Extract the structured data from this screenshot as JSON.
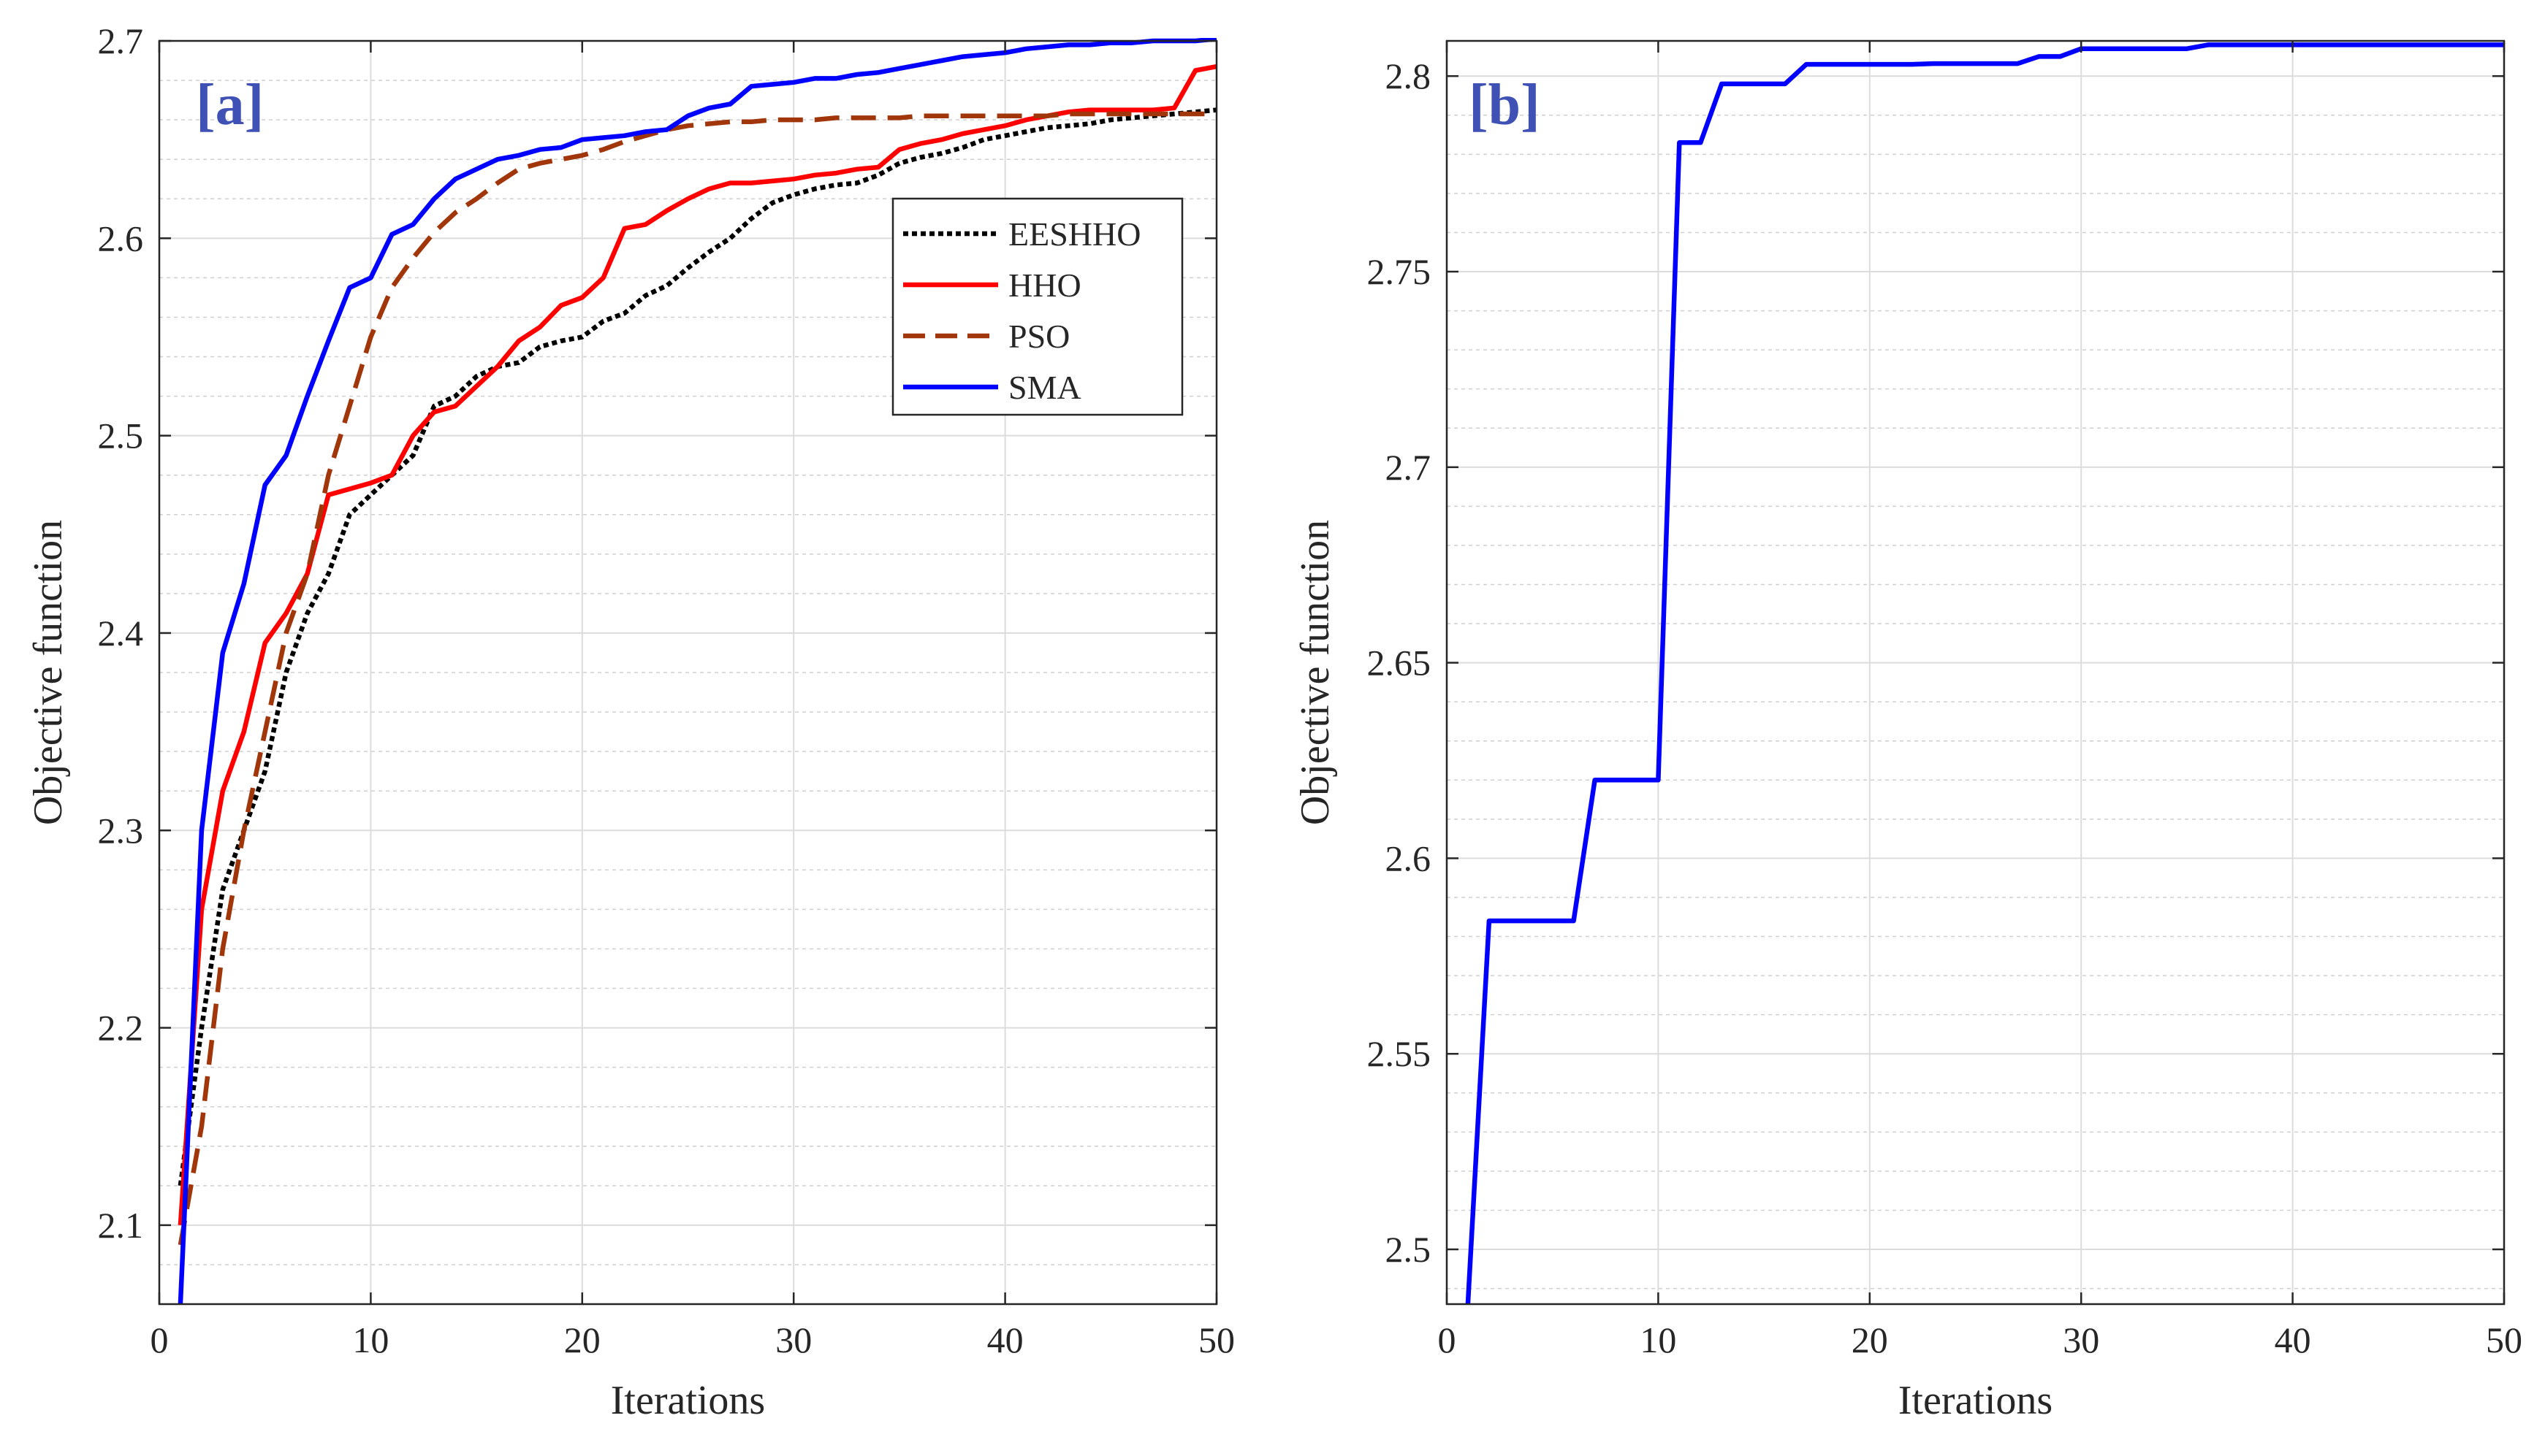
{
  "chart_data": [
    {
      "id": "a",
      "type": "line",
      "panel_label": "[a]",
      "xlabel": "Iterations",
      "ylabel": "Objective function",
      "xlim": [
        0,
        50
      ],
      "ylim": [
        2.06,
        2.7
      ],
      "xticks": [
        0,
        10,
        20,
        30,
        40,
        50
      ],
      "xtick_labels": [
        "0",
        "10",
        "20",
        "30",
        "40",
        "50"
      ],
      "yticks": [
        2.1,
        2.2,
        2.3,
        2.4,
        2.5,
        2.6,
        2.7
      ],
      "ytick_labels": [
        "2.1",
        "2.2",
        "2.3",
        "2.4",
        "2.5",
        "2.6",
        "2.7"
      ],
      "grid": true,
      "legend_position": "top-right",
      "label_color": "#3f51b5",
      "series": [
        {
          "name": "EESHHO",
          "color": "#000000",
          "dash": "dotted",
          "x": [
            1,
            2,
            3,
            4,
            5,
            6,
            7,
            8,
            9,
            10,
            11,
            12,
            13,
            14,
            15,
            16,
            17,
            18,
            19,
            20,
            21,
            22,
            23,
            24,
            25,
            26,
            27,
            28,
            29,
            30,
            31,
            32,
            33,
            34,
            35,
            36,
            37,
            38,
            39,
            40,
            41,
            42,
            43,
            44,
            45,
            46,
            47,
            48,
            49,
            50
          ],
          "values": [
            2.12,
            2.2,
            2.27,
            2.3,
            2.33,
            2.38,
            2.41,
            2.43,
            2.46,
            2.47,
            2.48,
            2.49,
            2.515,
            2.52,
            2.53,
            2.535,
            2.537,
            2.545,
            2.548,
            2.55,
            2.558,
            2.562,
            2.571,
            2.576,
            2.585,
            2.593,
            2.6,
            2.61,
            2.618,
            2.622,
            2.625,
            2.627,
            2.628,
            2.632,
            2.638,
            2.641,
            2.643,
            2.646,
            2.65,
            2.652,
            2.654,
            2.656,
            2.657,
            2.658,
            2.66,
            2.661,
            2.662,
            2.663,
            2.664,
            2.665
          ]
        },
        {
          "name": "HHO",
          "color": "#ff0000",
          "dash": "solid",
          "x": [
            1,
            2,
            3,
            4,
            5,
            6,
            7,
            8,
            9,
            10,
            11,
            12,
            13,
            14,
            15,
            16,
            17,
            18,
            19,
            20,
            21,
            22,
            23,
            24,
            25,
            26,
            27,
            28,
            29,
            30,
            31,
            32,
            33,
            34,
            35,
            36,
            37,
            38,
            39,
            40,
            41,
            42,
            43,
            44,
            45,
            46,
            47,
            48,
            49,
            50
          ],
          "values": [
            2.1,
            2.26,
            2.32,
            2.35,
            2.395,
            2.41,
            2.43,
            2.47,
            2.473,
            2.476,
            2.48,
            2.5,
            2.512,
            2.515,
            2.525,
            2.535,
            2.548,
            2.555,
            2.566,
            2.57,
            2.58,
            2.605,
            2.607,
            2.614,
            2.62,
            2.625,
            2.628,
            2.628,
            2.629,
            2.63,
            2.632,
            2.633,
            2.635,
            2.636,
            2.645,
            2.648,
            2.65,
            2.653,
            2.655,
            2.657,
            2.66,
            2.662,
            2.664,
            2.665,
            2.665,
            2.665,
            2.665,
            2.666,
            2.685,
            2.687
          ]
        },
        {
          "name": "PSO",
          "color": "#a0360a",
          "dash": "dashed",
          "x": [
            1,
            2,
            3,
            4,
            5,
            6,
            7,
            8,
            9,
            10,
            11,
            12,
            13,
            14,
            15,
            16,
            17,
            18,
            19,
            20,
            21,
            22,
            23,
            24,
            25,
            26,
            27,
            28,
            29,
            30,
            31,
            32,
            33,
            34,
            35,
            36,
            37,
            38,
            39,
            40,
            41,
            42,
            43,
            44,
            45,
            46,
            47,
            48,
            49,
            50
          ],
          "values": [
            2.09,
            2.15,
            2.24,
            2.3,
            2.35,
            2.4,
            2.43,
            2.48,
            2.515,
            2.55,
            2.575,
            2.59,
            2.603,
            2.613,
            2.62,
            2.628,
            2.635,
            2.638,
            2.64,
            2.642,
            2.645,
            2.649,
            2.652,
            2.655,
            2.657,
            2.658,
            2.659,
            2.659,
            2.66,
            2.66,
            2.66,
            2.661,
            2.661,
            2.661,
            2.661,
            2.662,
            2.662,
            2.662,
            2.662,
            2.662,
            2.662,
            2.662,
            2.663,
            2.663,
            2.663,
            2.663,
            2.663,
            2.663,
            2.663,
            2.663
          ]
        },
        {
          "name": "SMA",
          "color": "#0000ff",
          "dash": "solid",
          "x": [
            1,
            2,
            3,
            4,
            5,
            6,
            7,
            8,
            9,
            10,
            11,
            12,
            13,
            14,
            15,
            16,
            17,
            18,
            19,
            20,
            21,
            22,
            23,
            24,
            25,
            26,
            27,
            28,
            29,
            30,
            31,
            32,
            33,
            34,
            35,
            36,
            37,
            38,
            39,
            40,
            41,
            42,
            43,
            44,
            45,
            46,
            47,
            48,
            49,
            50
          ],
          "values": [
            2.06,
            2.3,
            2.39,
            2.425,
            2.475,
            2.49,
            2.52,
            2.548,
            2.575,
            2.58,
            2.602,
            2.607,
            2.62,
            2.63,
            2.635,
            2.64,
            2.642,
            2.645,
            2.646,
            2.65,
            2.651,
            2.652,
            2.654,
            2.655,
            2.662,
            2.666,
            2.668,
            2.677,
            2.678,
            2.679,
            2.681,
            2.681,
            2.683,
            2.684,
            2.686,
            2.688,
            2.69,
            2.692,
            2.693,
            2.694,
            2.696,
            2.697,
            2.698,
            2.698,
            2.699,
            2.699,
            2.7,
            2.7,
            2.7,
            2.701
          ]
        }
      ]
    },
    {
      "id": "b",
      "type": "line",
      "panel_label": "[b]",
      "xlabel": "Iterations",
      "ylabel": "Objective function",
      "xlim": [
        0,
        50
      ],
      "ylim": [
        2.486,
        2.809
      ],
      "xticks": [
        0,
        10,
        20,
        30,
        40,
        50
      ],
      "xtick_labels": [
        "0",
        "10",
        "20",
        "30",
        "40",
        "50"
      ],
      "yticks": [
        2.5,
        2.55,
        2.6,
        2.65,
        2.7,
        2.75,
        2.8
      ],
      "ytick_labels": [
        "2.5",
        "2.55",
        "2.6",
        "2.65",
        "2.7",
        "2.75",
        "2.8"
      ],
      "grid": true,
      "legend_position": "none",
      "label_color": "#3f51b5",
      "series": [
        {
          "name": "",
          "color": "#0000ff",
          "dash": "solid",
          "x": [
            1,
            2,
            3,
            4,
            5,
            6,
            7,
            8,
            9,
            10,
            11,
            12,
            13,
            14,
            15,
            16,
            17,
            18,
            19,
            20,
            21,
            22,
            23,
            24,
            25,
            26,
            27,
            28,
            29,
            30,
            31,
            32,
            33,
            34,
            35,
            36,
            37,
            38,
            39,
            40,
            41,
            42,
            43,
            44,
            45,
            46,
            47,
            48,
            49,
            50
          ],
          "values": [
            2.486,
            2.584,
            2.584,
            2.584,
            2.584,
            2.584,
            2.62,
            2.62,
            2.62,
            2.62,
            2.783,
            2.783,
            2.798,
            2.798,
            2.798,
            2.798,
            2.803,
            2.803,
            2.803,
            2.803,
            2.803,
            2.803,
            2.8032,
            2.8032,
            2.8032,
            2.8032,
            2.8032,
            2.805,
            2.805,
            2.807,
            2.807,
            2.807,
            2.807,
            2.807,
            2.807,
            2.808,
            2.808,
            2.808,
            2.808,
            2.808,
            2.808,
            2.808,
            2.808,
            2.808,
            2.808,
            2.808,
            2.808,
            2.808,
            2.808,
            2.808
          ]
        }
      ]
    }
  ]
}
